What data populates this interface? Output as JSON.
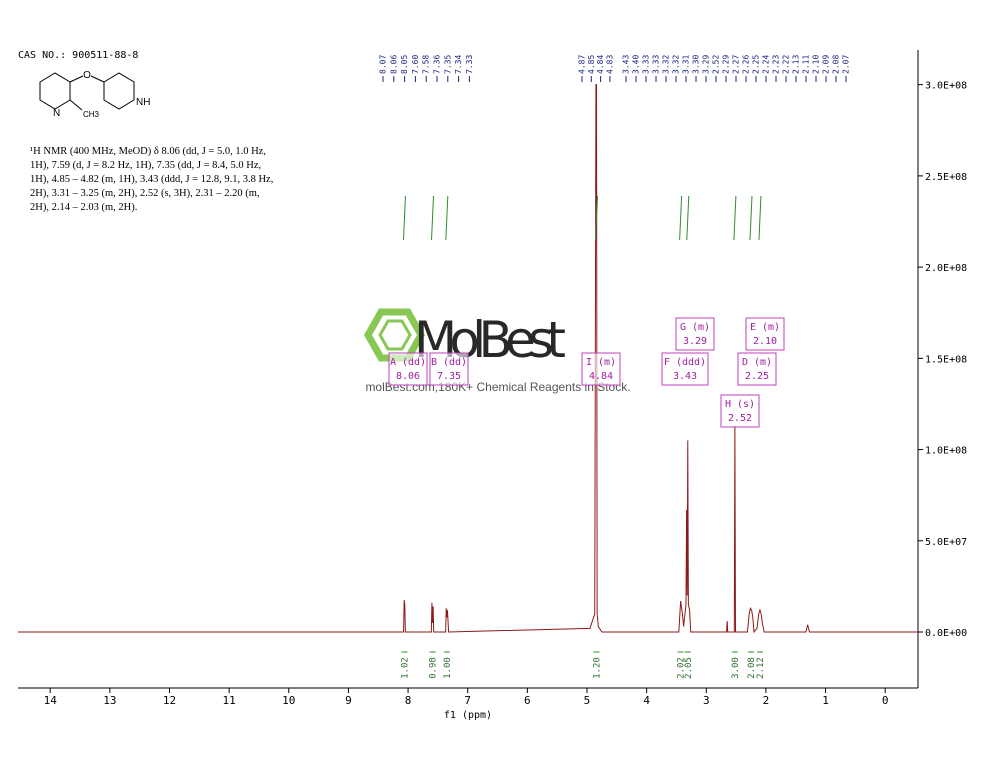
{
  "cas": "CAS NO.: 900511-88-8",
  "structure_labels": [
    "O",
    "N",
    "NH",
    "CH3"
  ],
  "description": "¹H NMR (400 MHz, MeOD) δ 8.06 (dd, J = 5.0, 1.0 Hz, 1H), 7.59 (d, J = 8.2 Hz, 1H), 7.35 (dd, J = 8.4, 5.0 Hz, 1H), 4.85 – 4.82 (m, 1H), 3.43 (ddd, J = 12.8, 9.1, 3.8 Hz, 2H), 3.31 – 3.25 (m, 2H), 2.52 (s, 3H), 2.31 – 2.20 (m, 2H), 2.14 – 2.03 (m, 2H).",
  "watermark": {
    "brand": "MolBest",
    "tagline": "molBest.com,180K+ Chemical Reagents in Stock."
  },
  "chart_data": {
    "type": "line",
    "x_label": "f1 (ppm)",
    "xlim": [
      14.54,
      -0.55
    ],
    "xticks": [
      14,
      13,
      12,
      11,
      10,
      9,
      8,
      7,
      6,
      5,
      4,
      3,
      2,
      1,
      0
    ],
    "ylim": [
      -30700000,
      319000000
    ],
    "yticks": [
      {
        "value": 300000000,
        "label": "3.0E+08"
      },
      {
        "value": 250000000,
        "label": "2.5E+08"
      },
      {
        "value": 200000000,
        "label": "2.0E+08"
      },
      {
        "value": 150000000,
        "label": "1.5E+08"
      },
      {
        "value": 100000000,
        "label": "1.0E+08"
      },
      {
        "value": 50000000,
        "label": "5.0E+07"
      },
      {
        "value": 0,
        "label": "0.0E+00"
      }
    ],
    "series": [
      {
        "color": "#8b1a1a",
        "x": [
          14.54,
          8.075,
          8.065,
          8.055,
          8.045,
          7.61,
          7.6,
          7.59,
          7.58,
          7.57,
          7.37,
          7.36,
          7.35,
          7.34,
          7.33,
          7.32,
          4.95,
          4.87,
          4.85,
          4.84,
          4.83,
          4.81,
          4.75,
          3.46,
          3.43,
          3.4,
          3.38,
          3.34,
          3.33,
          3.32,
          3.31,
          3.3,
          3.28,
          3.26,
          2.66,
          2.65,
          2.64,
          2.53,
          2.52,
          2.51,
          2.31,
          2.28,
          2.26,
          2.24,
          2.22,
          2.2,
          2.15,
          2.12,
          2.1,
          2.08,
          2.06,
          2.03,
          1.33,
          1.3,
          1.27,
          -0.55
        ],
        "values": [
          0,
          0,
          17500000,
          15000000,
          0,
          0,
          16000000,
          5000000,
          14000000,
          0,
          0,
          13000000,
          8000000,
          12000000,
          6000000,
          0,
          2000000,
          10000000,
          300000000,
          300000000,
          10000000,
          3000000,
          0,
          0,
          17000000,
          10000000,
          3000000,
          15000000,
          67000000,
          20000000,
          105000000,
          15000000,
          12000000,
          0,
          0,
          6000000,
          0,
          0,
          113000000,
          0,
          0,
          10000000,
          13000000,
          12000000,
          8000000,
          0,
          2000000,
          10000000,
          12000000,
          10000000,
          5000000,
          0,
          0,
          4000000,
          0,
          0
        ]
      }
    ],
    "integrals": {
      "color": "#2e8b2e",
      "x": [
        8.06,
        7.59,
        7.35,
        4.84,
        3.43,
        3.31,
        2.52,
        2.25,
        2.1
      ],
      "values": [
        1.02,
        0.98,
        1.0,
        1.2,
        2.02,
        2.05,
        3.0,
        2.08,
        2.12
      ],
      "value_labels": [
        "1.02",
        "0.98",
        "1.00",
        "1.20",
        "2.02",
        "2.05",
        "3.00",
        "2.08",
        "2.12"
      ]
    },
    "peak_label_groups": [
      [
        "8.07",
        "8.06",
        "8.05",
        "7.60",
        "7.58",
        "7.36",
        "7.35",
        "7.34",
        "7.33"
      ],
      [
        "4.87",
        "4.85",
        "4.84",
        "4.83"
      ],
      [
        "3.43",
        "3.40",
        "3.33",
        "3.33",
        "3.32",
        "3.32",
        "3.31",
        "3.30",
        "3.29",
        "2.52",
        "2.29",
        "2.27",
        "2.26",
        "2.25",
        "2.24",
        "2.23",
        "2.22",
        "2.13",
        "2.11",
        "2.10",
        "2.09",
        "2.08",
        "2.07"
      ]
    ],
    "multiplets": [
      {
        "label": "A (dd)",
        "shift": "8.06"
      },
      {
        "label": "B (dd)",
        "shift": "7.35"
      },
      {
        "label": "I (m)",
        "shift": "4.84"
      },
      {
        "label": "F (ddd)",
        "shift": "3.43"
      },
      {
        "label": "G (m)",
        "shift": "3.29"
      },
      {
        "label": "H (s)",
        "shift": "2.52"
      },
      {
        "label": "D (m)",
        "shift": "2.25"
      },
      {
        "label": "E (m)",
        "shift": "2.10"
      }
    ]
  }
}
